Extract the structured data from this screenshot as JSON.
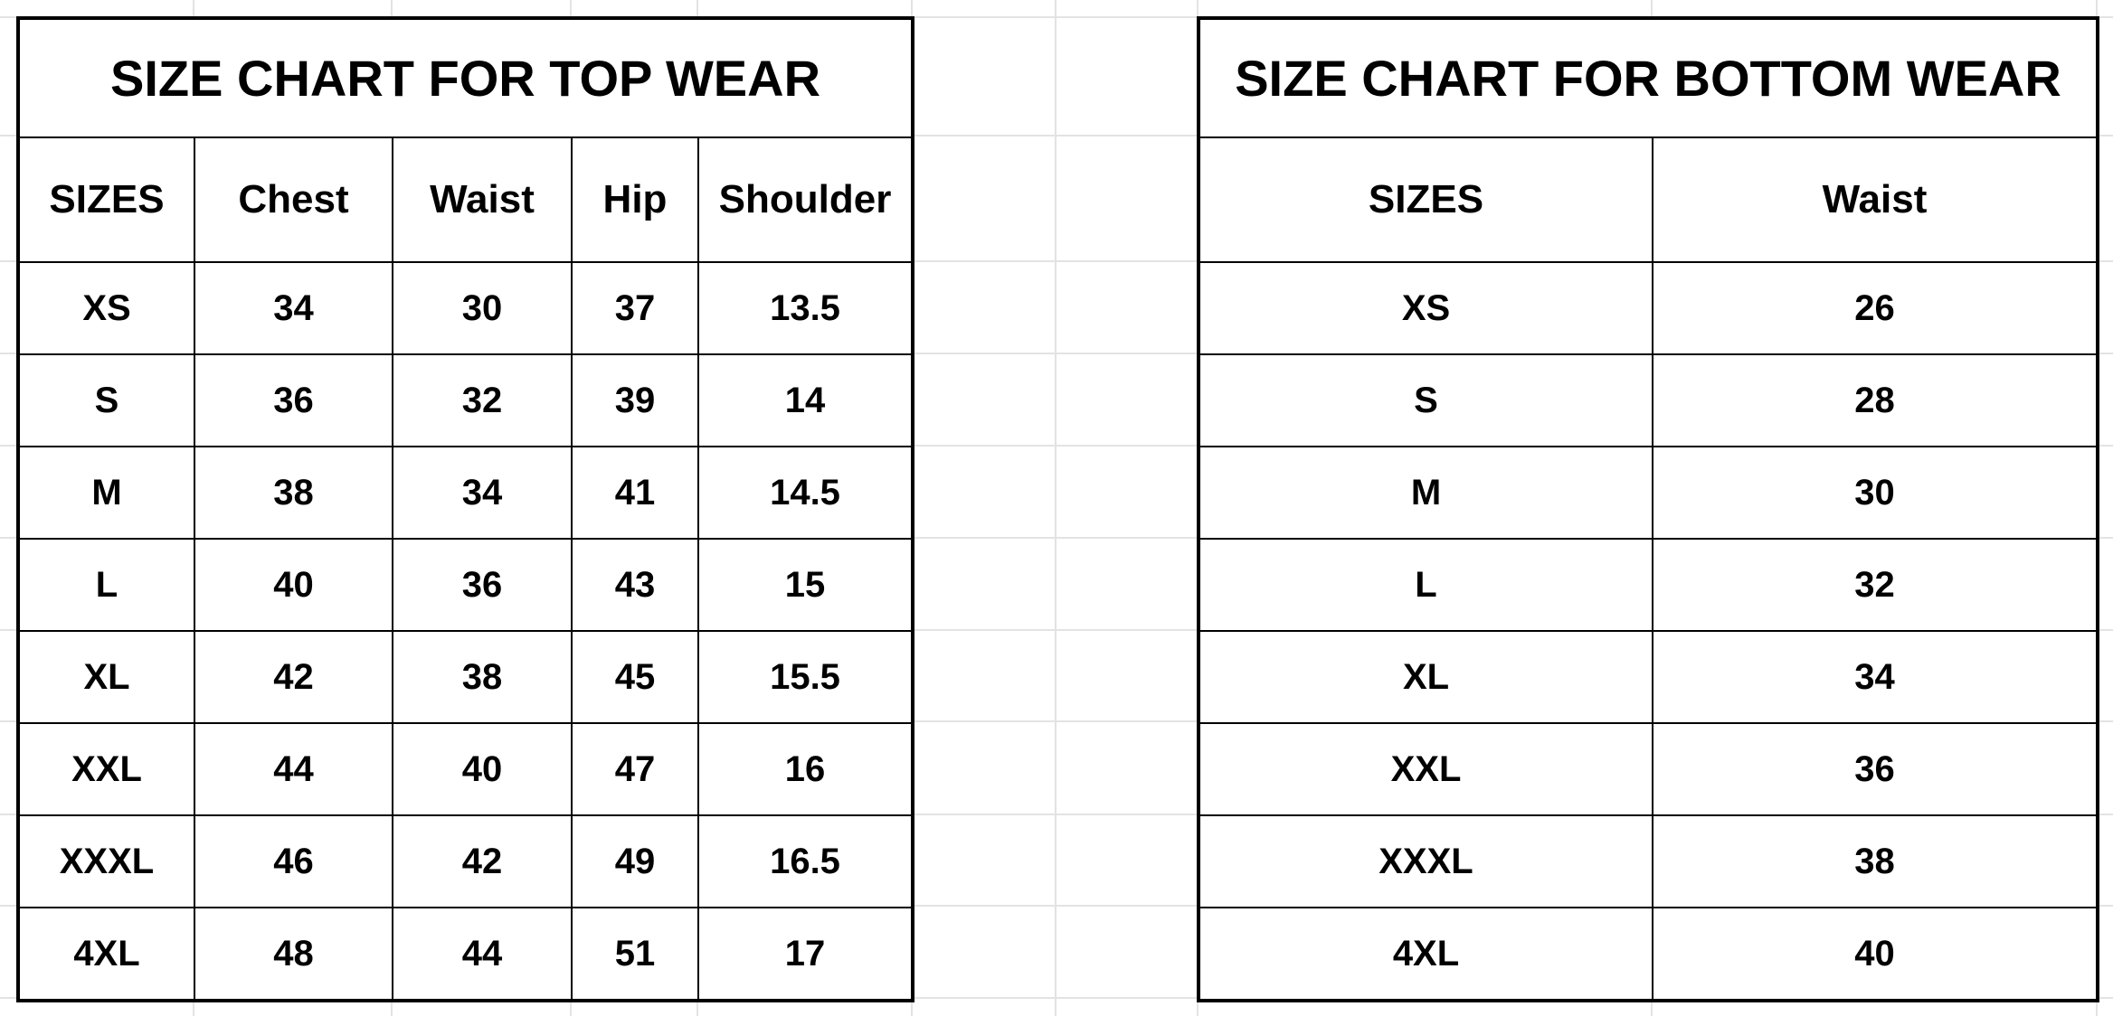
{
  "top_wear": {
    "title": "SIZE CHART FOR TOP WEAR",
    "headers": [
      "SIZES",
      "Chest",
      "Waist",
      "Hip",
      "Shoulder"
    ],
    "rows": [
      [
        "XS",
        "34",
        "30",
        "37",
        "13.5"
      ],
      [
        "S",
        "36",
        "32",
        "39",
        "14"
      ],
      [
        "M",
        "38",
        "34",
        "41",
        "14.5"
      ],
      [
        "L",
        "40",
        "36",
        "43",
        "15"
      ],
      [
        "XL",
        "42",
        "38",
        "45",
        "15.5"
      ],
      [
        "XXL",
        "44",
        "40",
        "47",
        "16"
      ],
      [
        "XXXL",
        "46",
        "42",
        "49",
        "16.5"
      ],
      [
        "4XL",
        "48",
        "44",
        "51",
        "17"
      ]
    ]
  },
  "bottom_wear": {
    "title": "SIZE CHART FOR BOTTOM WEAR",
    "headers": [
      "SIZES",
      "Waist"
    ],
    "rows": [
      [
        "XS",
        "26"
      ],
      [
        "S",
        "28"
      ],
      [
        "M",
        "30"
      ],
      [
        "L",
        "32"
      ],
      [
        "XL",
        "34"
      ],
      [
        "XXL",
        "36"
      ],
      [
        "XXXL",
        "38"
      ],
      [
        "4XL",
        "40"
      ]
    ]
  }
}
